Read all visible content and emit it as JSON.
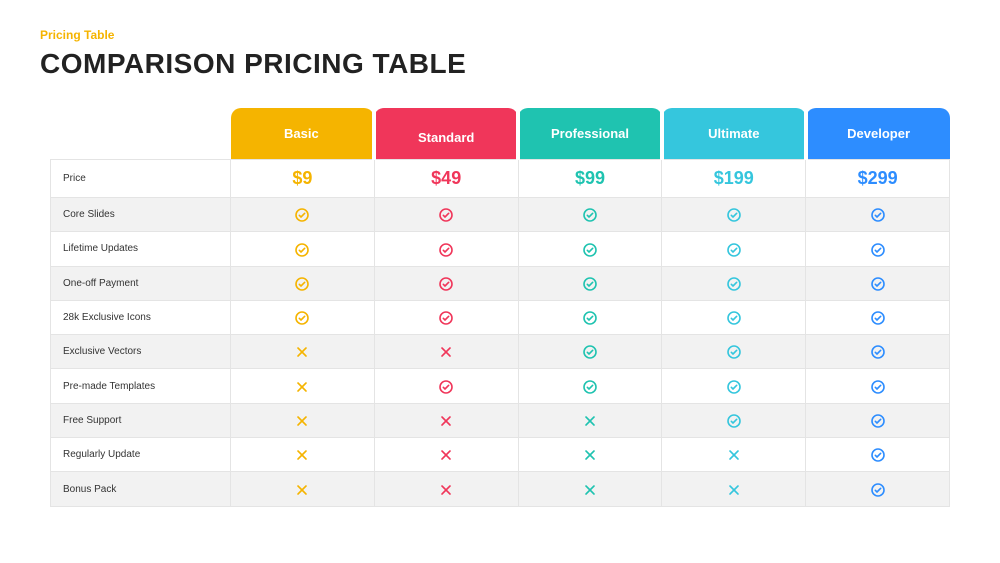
{
  "subtitle": "Pricing Table",
  "subtitle_color": "#f5b400",
  "title": "COMPARISON PRICING TABLE",
  "plans": [
    {
      "id": "basic",
      "label": "Basic",
      "color": "#f5b400",
      "featured": false
    },
    {
      "id": "standard",
      "label": "Standard",
      "color": "#f0365a",
      "featured": true
    },
    {
      "id": "professional",
      "label": "Professional",
      "color": "#1fc3b0",
      "featured": false
    },
    {
      "id": "ultimate",
      "label": "Ultimate",
      "color": "#35c6dd",
      "featured": false
    },
    {
      "id": "developer",
      "label": "Developer",
      "color": "#2d8dff",
      "featured": false
    }
  ],
  "features": [
    {
      "id": "price",
      "label": "Price",
      "kind": "price",
      "values": [
        "$9",
        "$49",
        "$99",
        "$199",
        "$299"
      ]
    },
    {
      "id": "core",
      "label": "Core Slides",
      "kind": "bool",
      "values": [
        true,
        true,
        true,
        true,
        true
      ]
    },
    {
      "id": "lifetime",
      "label": "Lifetime Updates",
      "kind": "bool",
      "values": [
        true,
        true,
        true,
        true,
        true
      ]
    },
    {
      "id": "oneoff",
      "label": "One-off Payment",
      "kind": "bool",
      "values": [
        true,
        true,
        true,
        true,
        true
      ]
    },
    {
      "id": "icons",
      "label": "28k Exclusive Icons",
      "kind": "bool",
      "values": [
        true,
        true,
        true,
        true,
        true
      ]
    },
    {
      "id": "vectors",
      "label": "Exclusive Vectors",
      "kind": "bool",
      "values": [
        false,
        false,
        true,
        true,
        true
      ]
    },
    {
      "id": "templates",
      "label": "Pre-made Templates",
      "kind": "bool",
      "values": [
        false,
        true,
        true,
        true,
        true
      ]
    },
    {
      "id": "support",
      "label": "Free Support",
      "kind": "bool",
      "values": [
        false,
        false,
        false,
        true,
        true
      ]
    },
    {
      "id": "regupdate",
      "label": "Regularly Update",
      "kind": "bool",
      "values": [
        false,
        false,
        false,
        false,
        true
      ]
    },
    {
      "id": "bonus",
      "label": "Bonus Pack",
      "kind": "bool",
      "values": [
        false,
        false,
        false,
        false,
        true
      ]
    }
  ],
  "cross_color": "#f5b400",
  "row_alt_bg": "#f2f2f2",
  "grid_color": "#e4e4e4"
}
